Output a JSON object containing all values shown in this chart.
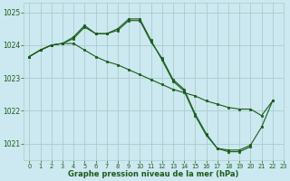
{
  "title": "Graphe pression niveau de la mer (hPa)",
  "bg_color": "#cce8f0",
  "grid_color": "#aacccc",
  "line_color": "#1a5c1a",
  "xlim": [
    -0.5,
    23
  ],
  "ylim": [
    1020.5,
    1025.3
  ],
  "yticks": [
    1021,
    1022,
    1023,
    1024,
    1025
  ],
  "xticks": [
    0,
    1,
    2,
    3,
    4,
    5,
    6,
    7,
    8,
    9,
    10,
    11,
    12,
    13,
    14,
    15,
    16,
    17,
    18,
    19,
    20,
    21,
    22,
    23
  ],
  "series": [
    {
      "x": [
        0,
        1,
        2,
        3,
        4,
        5,
        6,
        7,
        8,
        9,
        10,
        11,
        12,
        13,
        14,
        15,
        16,
        17,
        18,
        19,
        20,
        21,
        22
      ],
      "y": [
        1023.65,
        1023.85,
        1024.0,
        1024.05,
        1024.2,
        1024.55,
        1024.35,
        1024.35,
        1024.45,
        1024.75,
        1024.75,
        1024.1,
        1023.6,
        1022.95,
        1022.65,
        1021.9,
        1021.3,
        1020.85,
        1020.8,
        1020.8,
        1020.95,
        1021.5,
        1022.3
      ]
    },
    {
      "x": [
        0,
        1,
        2,
        3,
        4,
        5,
        6,
        7,
        8,
        9,
        10,
        11,
        12,
        13,
        14,
        15,
        16,
        17,
        18,
        19,
        20
      ],
      "y": [
        1023.65,
        1023.85,
        1024.0,
        1024.05,
        1024.25,
        1024.6,
        1024.35,
        1024.35,
        1024.5,
        1024.8,
        1024.8,
        1024.15,
        1023.55,
        1022.9,
        1022.6,
        1021.85,
        1021.25,
        1020.85,
        1020.75,
        1020.75,
        1020.9
      ]
    },
    {
      "x": [
        0,
        1,
        2,
        3,
        4,
        5,
        6,
        7,
        8,
        9,
        10,
        11,
        12,
        13,
        14,
        15,
        16,
        17,
        18,
        19,
        20,
        21,
        22
      ],
      "y": [
        1023.65,
        1023.85,
        1024.0,
        1024.05,
        1024.05,
        1023.85,
        1023.65,
        1023.5,
        1023.4,
        1023.25,
        1023.1,
        1022.95,
        1022.8,
        1022.65,
        1022.55,
        1022.45,
        1022.3,
        1022.2,
        1022.1,
        1022.05,
        1022.05,
        1021.85,
        1022.3
      ]
    }
  ]
}
